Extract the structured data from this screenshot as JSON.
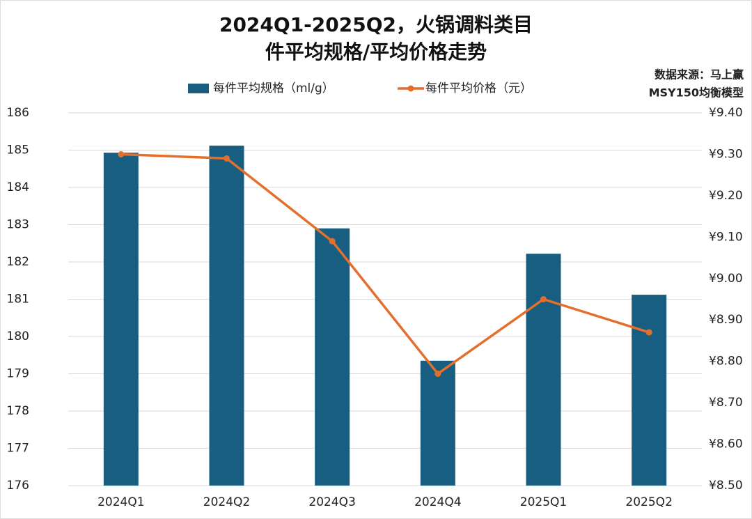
{
  "chart_data": {
    "type": "bar-line",
    "title": [
      "2024Q1-2025Q2，火锅调料类目",
      "件平均规格/平均价格走势"
    ],
    "annotations": [
      "数据来源：马上赢",
      "MSY150均衡模型"
    ],
    "categories": [
      "2024Q1",
      "2024Q2",
      "2024Q3",
      "2024Q4",
      "2025Q1",
      "2025Q2"
    ],
    "series": [
      {
        "name": "每件平均规格（ml/g）",
        "type": "bar",
        "color": "#175e80",
        "axis": "y",
        "values": [
          184.93,
          185.12,
          182.9,
          179.35,
          182.22,
          181.12
        ]
      },
      {
        "name": "每件平均价格（元）",
        "type": "line",
        "color": "#e46f2d",
        "axis": "y2",
        "values": [
          9.3,
          9.29,
          9.09,
          8.77,
          8.95,
          8.87
        ]
      }
    ],
    "ylim": [
      176,
      186
    ],
    "yticks": [
      176,
      177,
      178,
      179,
      180,
      181,
      182,
      183,
      184,
      185,
      186
    ],
    "y2lim": [
      8.5,
      9.4
    ],
    "y2ticks": [
      {
        "value": 8.5,
        "label": "¥8.50"
      },
      {
        "value": 8.6,
        "label": "¥8.60"
      },
      {
        "value": 8.7,
        "label": "¥8.70"
      },
      {
        "value": 8.8,
        "label": "¥8.80"
      },
      {
        "value": 8.9,
        "label": "¥8.90"
      },
      {
        "value": 9.0,
        "label": "¥9.00"
      },
      {
        "value": 9.1,
        "label": "¥9.10"
      },
      {
        "value": 9.2,
        "label": "¥9.20"
      },
      {
        "value": 9.3,
        "label": "¥9.30"
      },
      {
        "value": 9.4,
        "label": "¥9.40"
      }
    ],
    "grid": true,
    "legend": "top"
  }
}
